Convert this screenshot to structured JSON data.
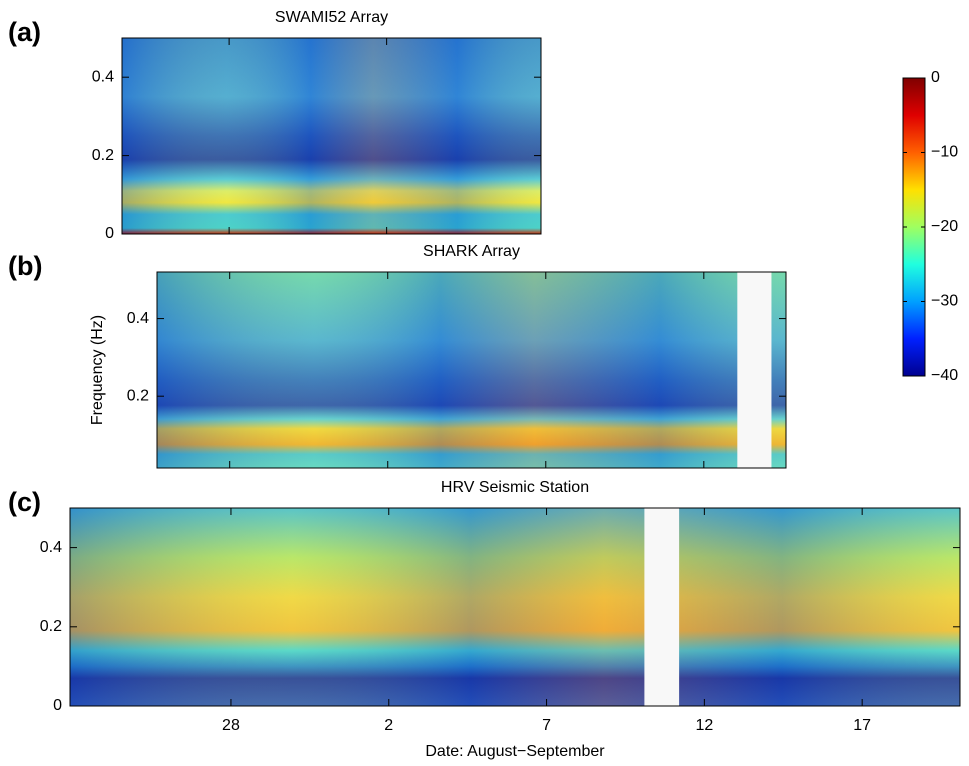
{
  "chart_data": [
    {
      "type": "spectrogram",
      "panel_label": "(a)",
      "title": "SWAMI52 Array",
      "xlim": [
        24.6,
        37.9
      ],
      "ylim": [
        0,
        0.5
      ],
      "yticks": [
        0,
        0.2,
        0.4
      ],
      "xticks": [
        28,
        33
      ]
    },
    {
      "type": "spectrogram",
      "panel_label": "(b)",
      "title": "SHARK Array",
      "ylabel": "Frequency (Hz)",
      "xlim": [
        25.7,
        45.6
      ],
      "ylim": [
        0.015,
        0.52
      ],
      "yticks": [
        0.2,
        0.4
      ],
      "xticks": [
        28,
        33,
        38,
        43
      ],
      "gaps": [
        [
          44.06,
          45.14
        ]
      ]
    },
    {
      "type": "spectrogram",
      "panel_label": "(c)",
      "title": "HRV Seismic Station",
      "xlabel": "Date: August−September",
      "xlim": [
        22.9,
        51.1
      ],
      "ylim": [
        0,
        0.5
      ],
      "yticks": [
        0,
        0.2,
        0.4
      ],
      "xticks": [
        28,
        {
          "value": 33,
          "label": "2"
        },
        {
          "value": 38,
          "label": "7"
        },
        {
          "value": 43,
          "label": "12"
        },
        {
          "value": 48,
          "label": "17"
        }
      ],
      "show_xticklabels": true,
      "gaps": [
        [
          41.1,
          42.2
        ]
      ]
    },
    {
      "type": "colorbar",
      "ylim": [
        -40,
        0
      ],
      "yticks": [
        0,
        {
          "value": -10,
          "label": "−10"
        },
        {
          "value": -20,
          "label": "−20"
        },
        {
          "value": -30,
          "label": "−30"
        },
        {
          "value": -40,
          "label": "−40"
        }
      ],
      "colors": [
        "#00008f",
        "#0020ff",
        "#00a0ff",
        "#20ffdf",
        "#9fff60",
        "#ffe000",
        "#ff6000",
        "#df0000",
        "#800000"
      ]
    }
  ]
}
